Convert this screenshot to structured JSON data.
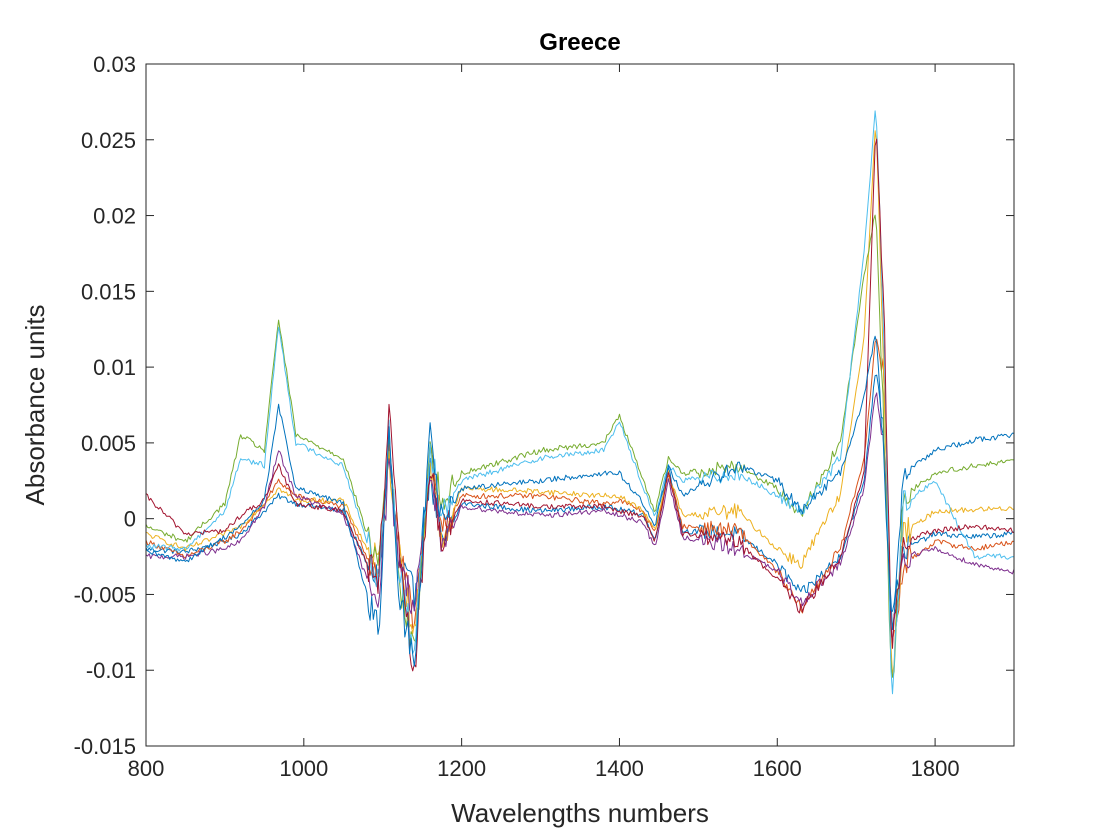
{
  "chart_data": {
    "type": "line",
    "title": "Greece",
    "xlabel": "Wavelengths numbers",
    "ylabel": "Absorbance units",
    "xlim": [
      800,
      1900
    ],
    "ylim": [
      -0.015,
      0.03
    ],
    "xticks": [
      800,
      1000,
      1200,
      1400,
      1600,
      1800
    ],
    "yticks": [
      -0.015,
      -0.01,
      -0.005,
      0,
      0.005,
      0.01,
      0.015,
      0.02,
      0.025,
      0.03
    ],
    "xtick_labels": [
      "800",
      "1000",
      "1200",
      "1400",
      "1600",
      "1800"
    ],
    "ytick_labels": [
      "-0.015",
      "-0.01",
      "-0.005",
      "0",
      "0.005",
      "0.01",
      "0.015",
      "0.02",
      "0.025",
      "0.03"
    ],
    "grid": false,
    "legend": "none",
    "colors": [
      "#0072BD",
      "#D95319",
      "#EDB120",
      "#7E2F8E",
      "#77AC30",
      "#4DBEEE",
      "#A2142F"
    ],
    "x": [
      800,
      850,
      900,
      920,
      950,
      968,
      990,
      1050,
      1080,
      1095,
      1108,
      1120,
      1140,
      1160,
      1175,
      1200,
      1300,
      1380,
      1400,
      1430,
      1445,
      1462,
      1480,
      1550,
      1600,
      1630,
      1680,
      1710,
      1725,
      1735,
      1745,
      1760,
      1800,
      1850,
      1900
    ],
    "series": [
      {
        "values": [
          -0.002,
          -0.0022,
          -0.0015,
          -0.001,
          0.0005,
          0.0015,
          0.001,
          0.0005,
          -0.003,
          -0.004,
          0.005,
          -0.003,
          -0.005,
          0.003,
          -0.002,
          0.001,
          0.0005,
          0.0008,
          0.0006,
          0.0003,
          -0.0015,
          0.0035,
          -0.0008,
          -0.001,
          -0.003,
          -0.005,
          -0.0025,
          0.0025,
          0.01,
          0.006,
          -0.007,
          -0.002,
          -0.001,
          -0.0012,
          -0.001
        ]
      },
      {
        "values": [
          -0.0015,
          -0.0025,
          -0.0015,
          -0.0008,
          0.001,
          0.0025,
          0.0015,
          0.0008,
          -0.0025,
          -0.0035,
          0.0045,
          -0.002,
          -0.007,
          0.0045,
          -0.001,
          0.0015,
          0.0015,
          0.001,
          0.0012,
          0.0005,
          -0.001,
          0.003,
          -0.0005,
          -0.0008,
          -0.0035,
          -0.006,
          -0.002,
          0.004,
          0.012,
          0.0095,
          -0.009,
          -0.003,
          -0.0015,
          -0.002,
          -0.0015
        ]
      },
      {
        "values": [
          -0.001,
          -0.002,
          -0.001,
          -0.0005,
          0.001,
          0.002,
          0.0012,
          0.0012,
          -0.002,
          -0.003,
          0.004,
          -0.0015,
          -0.008,
          0.004,
          -0.0015,
          0.002,
          0.0018,
          0.0015,
          0.0015,
          0.0005,
          -0.0008,
          0.003,
          0.0002,
          0.0005,
          -0.002,
          -0.003,
          0.0015,
          0.012,
          0.0265,
          0.01,
          -0.011,
          -0.001,
          0.0005,
          0.0006,
          0.0007
        ]
      },
      {
        "values": [
          -0.0025,
          -0.0025,
          -0.002,
          -0.0015,
          0.0008,
          0.0045,
          0.0015,
          0.0003,
          -0.004,
          -0.005,
          0.0035,
          -0.0025,
          -0.006,
          0.0035,
          -0.0025,
          0.0008,
          0.0002,
          0.0005,
          0.0002,
          -0.0002,
          -0.002,
          0.0025,
          -0.0012,
          -0.002,
          -0.0035,
          -0.0055,
          -0.003,
          0.002,
          0.0085,
          0.005,
          -0.008,
          -0.0025,
          -0.002,
          -0.003,
          -0.0035
        ]
      },
      {
        "values": [
          -0.0005,
          -0.0015,
          0.001,
          0.0055,
          0.0045,
          0.0132,
          0.0055,
          0.004,
          -0.001,
          -0.003,
          0.0055,
          -0.004,
          -0.009,
          0.0045,
          0.0008,
          0.003,
          0.0045,
          0.005,
          0.0068,
          0.0025,
          0.0005,
          0.004,
          0.003,
          0.0035,
          0.002,
          0.0003,
          0.005,
          0.016,
          0.0205,
          0.006,
          -0.012,
          0.0015,
          0.003,
          0.0035,
          0.0038
        ]
      },
      {
        "values": [
          -0.0018,
          -0.002,
          0.0005,
          0.004,
          0.0035,
          0.0128,
          0.005,
          0.0035,
          -0.0015,
          -0.004,
          0.006,
          -0.0035,
          -0.0085,
          0.005,
          0.0005,
          0.0025,
          0.004,
          0.0045,
          0.0065,
          0.002,
          0.0002,
          0.0035,
          0.0025,
          0.003,
          0.0015,
          0.0005,
          0.004,
          0.0175,
          0.0275,
          0.0125,
          -0.0125,
          0.001,
          0.0025,
          -0.0025,
          -0.0025
        ]
      },
      {
        "values": [
          0.0015,
          -0.001,
          -0.0008,
          0.0002,
          0.0012,
          0.0035,
          0.001,
          0.0005,
          -0.003,
          -0.004,
          0.007,
          -0.002,
          -0.0105,
          0.0035,
          -0.0015,
          0.0012,
          0.0008,
          0.0008,
          0.0005,
          0.0002,
          -0.0015,
          0.003,
          -0.001,
          -0.0015,
          -0.004,
          -0.006,
          -0.0025,
          0.003,
          0.0262,
          0.014,
          -0.0085,
          -0.0015,
          -0.0008,
          -0.0005,
          -0.0008
        ]
      },
      {
        "values": [
          -0.0022,
          -0.0028,
          -0.0012,
          -0.0005,
          0.0012,
          0.0075,
          0.002,
          0.001,
          -0.005,
          -0.0075,
          0.0055,
          -0.005,
          -0.0095,
          0.0055,
          -0.0005,
          0.002,
          0.0025,
          0.003,
          0.003,
          0.001,
          -0.0005,
          0.0035,
          0.0015,
          0.0035,
          0.0025,
          0.0005,
          0.003,
          0.008,
          0.0125,
          0.004,
          -0.0075,
          0.003,
          0.0045,
          0.0052,
          0.0055
        ]
      }
    ]
  }
}
